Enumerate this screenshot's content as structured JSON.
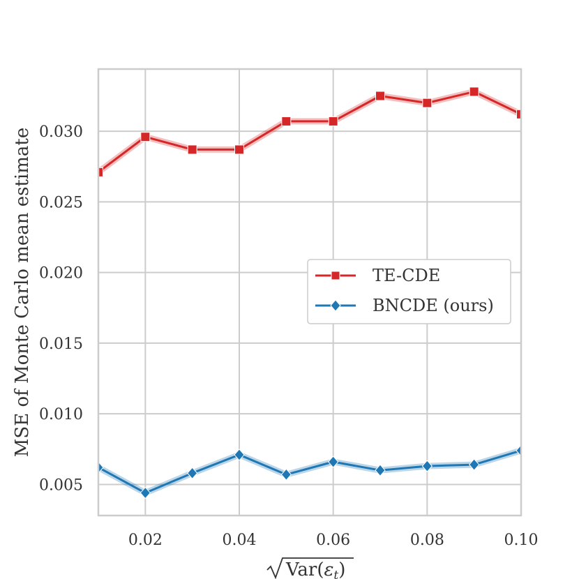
{
  "chart_data": {
    "type": "line",
    "title": "",
    "xlabel": "√Var(ε_t)",
    "ylabel": "MSE of Monte Carlo mean estimate",
    "xlim": [
      0.01,
      0.1
    ],
    "ylim": [
      0.0028,
      0.0344
    ],
    "x_ticks": [
      0.02,
      0.04,
      0.06,
      0.08,
      0.1
    ],
    "x_tick_labels": [
      "0.02",
      "0.04",
      "0.06",
      "0.08",
      "0.10"
    ],
    "y_ticks": [
      0.005,
      0.01,
      0.015,
      0.02,
      0.025,
      0.03
    ],
    "y_tick_labels": [
      "0.005",
      "0.010",
      "0.015",
      "0.020",
      "0.025",
      "0.030"
    ],
    "grid": true,
    "legend_position": "center-right",
    "x": [
      0.01,
      0.02,
      0.03,
      0.04,
      0.05,
      0.06,
      0.07,
      0.08,
      0.09,
      0.1
    ],
    "series": [
      {
        "name": "TE-CDE",
        "color": "#d62728",
        "marker": "square",
        "values": [
          0.0271,
          0.0296,
          0.0287,
          0.0287,
          0.0307,
          0.0307,
          0.0325,
          0.032,
          0.0328,
          0.0312
        ]
      },
      {
        "name": "BNCDE (ours)",
        "color": "#1f77b4",
        "marker": "diamond",
        "values": [
          0.0062,
          0.0044,
          0.0058,
          0.0071,
          0.0057,
          0.0066,
          0.006,
          0.0063,
          0.0064,
          0.0074
        ]
      }
    ]
  }
}
